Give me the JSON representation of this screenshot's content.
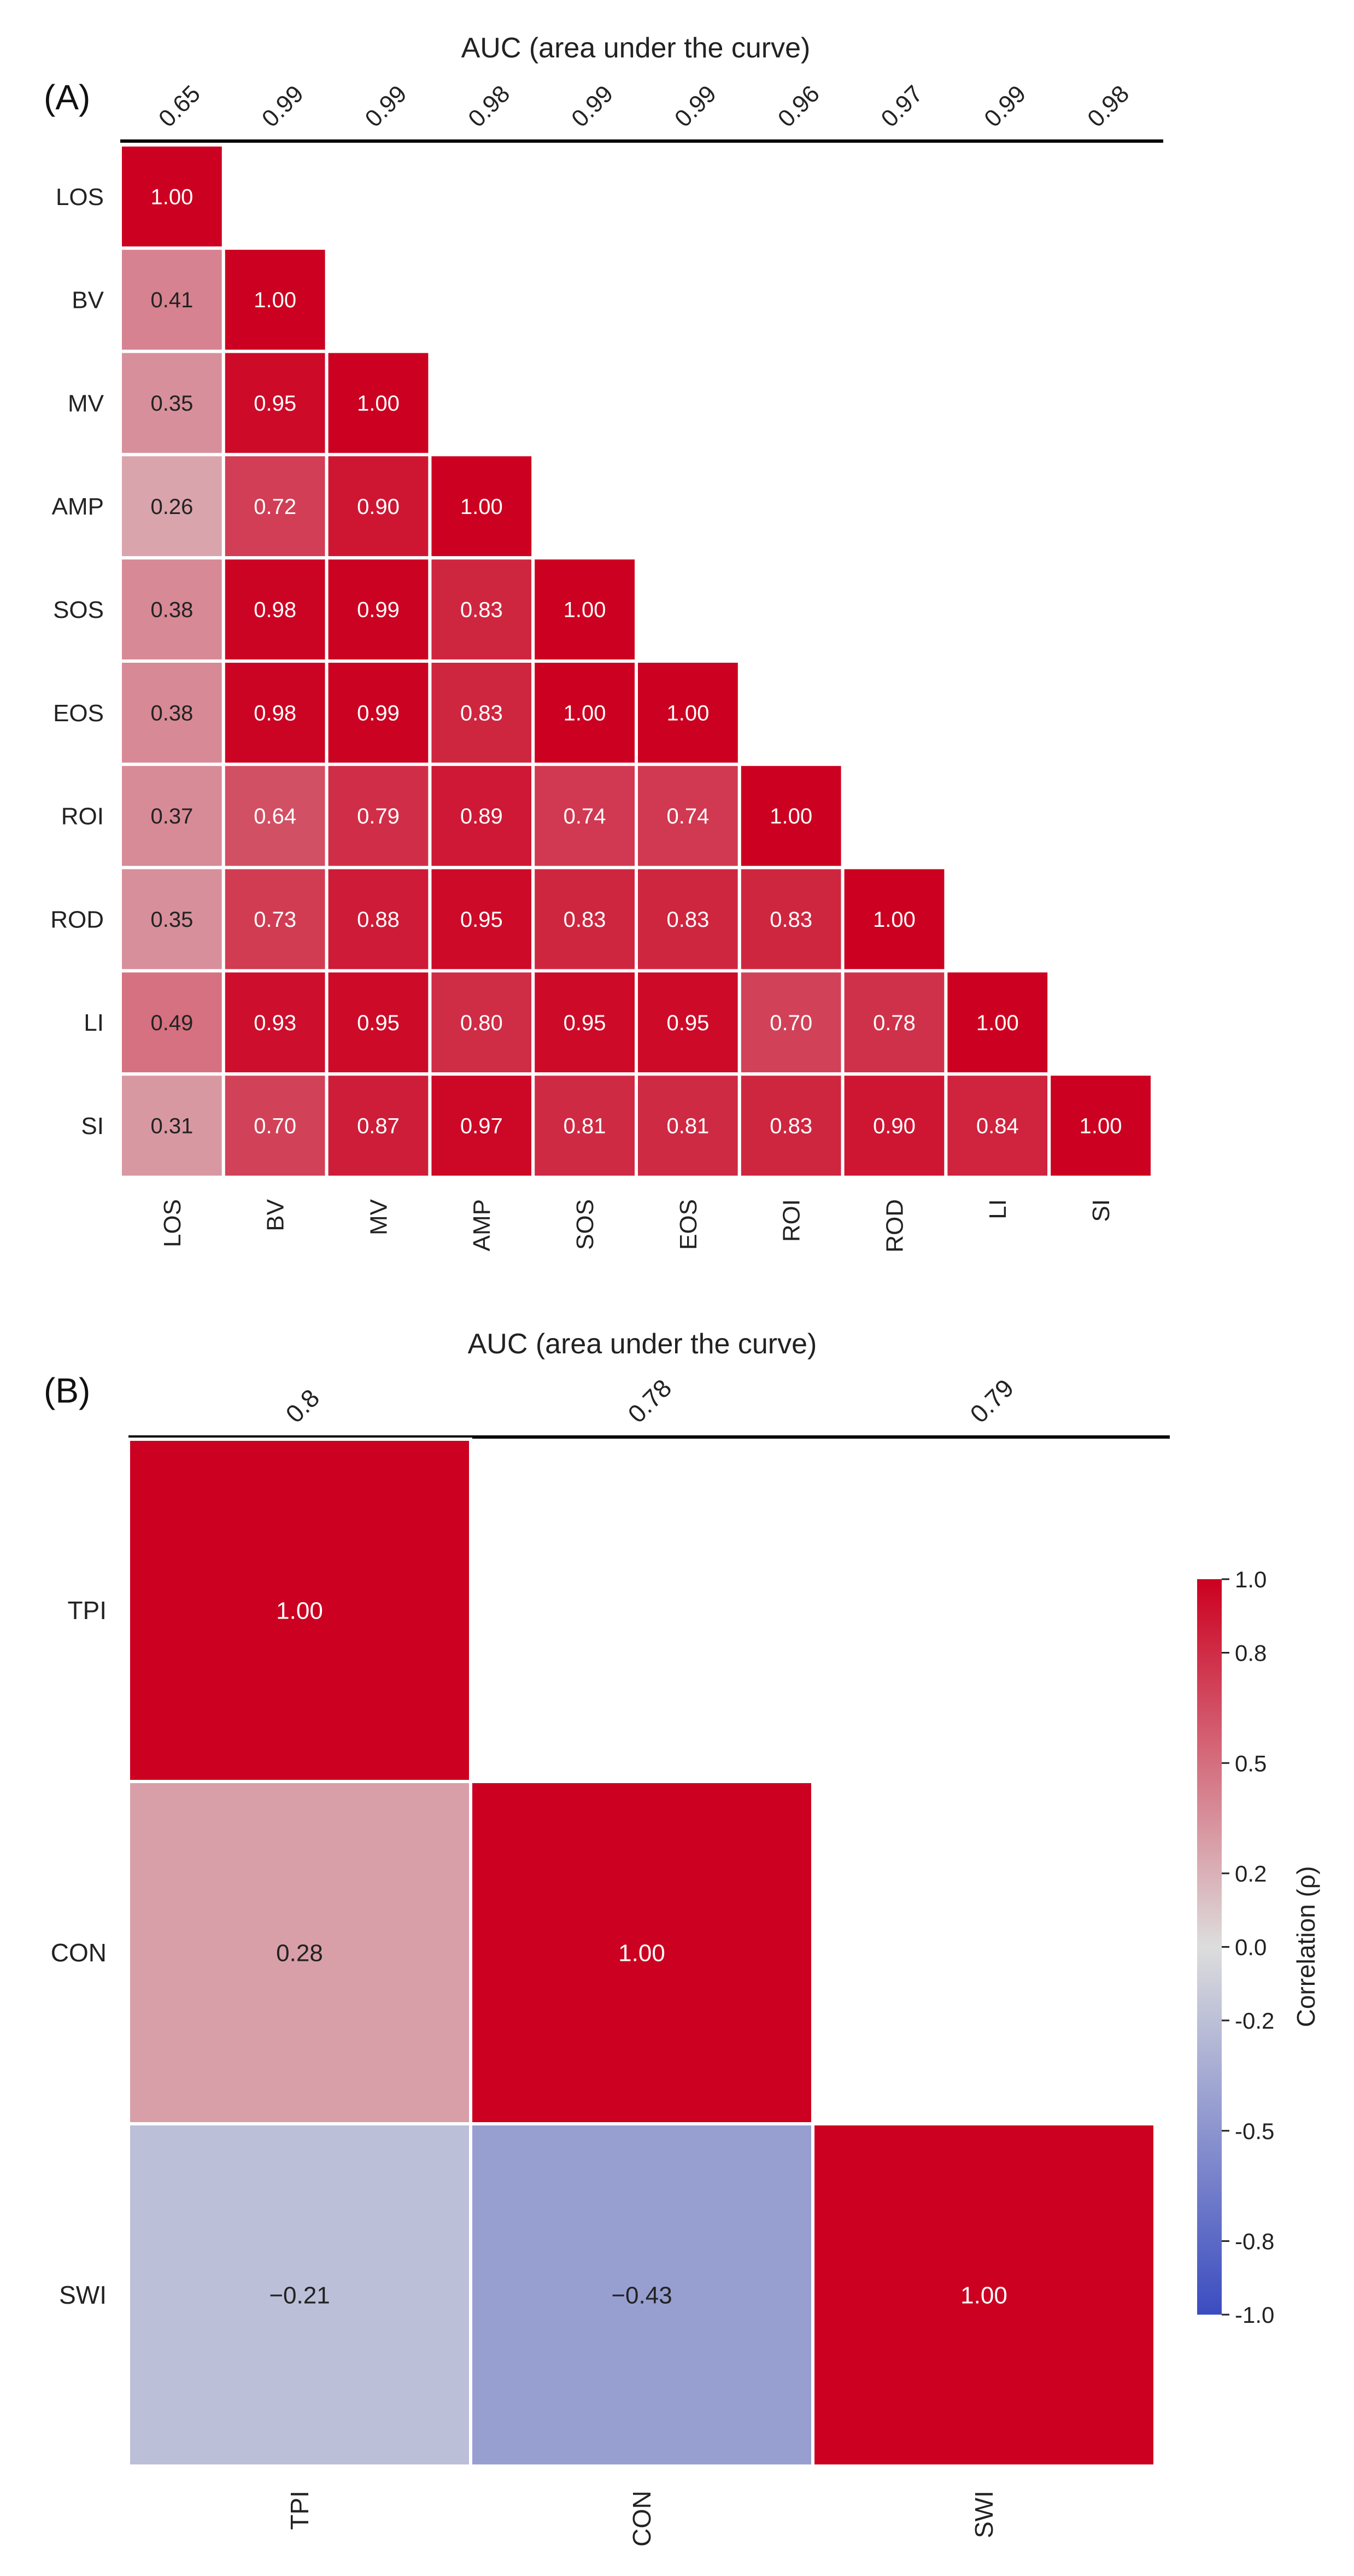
{
  "chart_data": [
    {
      "type": "heatmap",
      "panel_label": "(A)",
      "title": "AUC (area under the curve)",
      "variables": [
        "LOS",
        "BV",
        "MV",
        "AMP",
        "SOS",
        "EOS",
        "ROI",
        "ROD",
        "LI",
        "SI"
      ],
      "auc": [
        "0.65",
        "0.99",
        "0.99",
        "0.98",
        "0.99",
        "0.99",
        "0.96",
        "0.97",
        "0.99",
        "0.98"
      ],
      "values": [
        [
          1.0
        ],
        [
          0.41,
          1.0
        ],
        [
          0.35,
          0.95,
          1.0
        ],
        [
          0.26,
          0.72,
          0.9,
          1.0
        ],
        [
          0.38,
          0.98,
          0.99,
          0.83,
          1.0
        ],
        [
          0.38,
          0.98,
          0.99,
          0.83,
          1.0,
          1.0
        ],
        [
          0.37,
          0.64,
          0.79,
          0.89,
          0.74,
          0.74,
          1.0
        ],
        [
          0.35,
          0.73,
          0.88,
          0.95,
          0.83,
          0.83,
          0.83,
          1.0
        ],
        [
          0.49,
          0.93,
          0.95,
          0.8,
          0.95,
          0.95,
          0.7,
          0.78,
          1.0
        ],
        [
          0.31,
          0.7,
          0.87,
          0.97,
          0.81,
          0.81,
          0.83,
          0.9,
          0.84,
          1.0
        ]
      ],
      "labels": [
        [
          "1.00"
        ],
        [
          "0.41",
          "1.00"
        ],
        [
          "0.35",
          "0.95",
          "1.00"
        ],
        [
          "0.26",
          "0.72",
          "0.90",
          "1.00"
        ],
        [
          "0.38",
          "0.98",
          "0.99",
          "0.83",
          "1.00"
        ],
        [
          "0.38",
          "0.98",
          "0.99",
          "0.83",
          "1.00",
          "1.00"
        ],
        [
          "0.37",
          "0.64",
          "0.79",
          "0.89",
          "0.74",
          "0.74",
          "1.00"
        ],
        [
          "0.35",
          "0.73",
          "0.88",
          "0.95",
          "0.83",
          "0.83",
          "0.83",
          "1.00"
        ],
        [
          "0.49",
          "0.93",
          "0.95",
          "0.80",
          "0.95",
          "0.95",
          "0.70",
          "0.78",
          "1.00"
        ],
        [
          "0.31",
          "0.70",
          "0.87",
          "0.97",
          "0.81",
          "0.81",
          "0.83",
          "0.90",
          "0.84",
          "1.00"
        ]
      ]
    },
    {
      "type": "heatmap",
      "panel_label": "(B)",
      "title": "AUC (area under the curve)",
      "variables": [
        "TPI",
        "CON",
        "SWI"
      ],
      "auc": [
        "0.8",
        "0.78",
        "0.79"
      ],
      "values": [
        [
          1.0
        ],
        [
          0.28,
          1.0
        ],
        [
          -0.21,
          -0.43,
          1.0
        ]
      ],
      "labels": [
        [
          "1.00"
        ],
        [
          "0.28",
          "1.00"
        ],
        [
          "−0.21",
          "−0.43",
          "1.00"
        ]
      ]
    }
  ],
  "colorbar": {
    "label": "Correlation (ρ)",
    "range": [
      -1.0,
      1.0
    ],
    "ticks": [
      {
        "value": 1.0,
        "label": "1.0"
      },
      {
        "value": 0.8,
        "label": "0.8"
      },
      {
        "value": 0.5,
        "label": "0.5"
      },
      {
        "value": 0.2,
        "label": "0.2"
      },
      {
        "value": 0.0,
        "label": "0.0"
      },
      {
        "value": -0.2,
        "label": "-0.2"
      },
      {
        "value": -0.5,
        "label": "-0.5"
      },
      {
        "value": -0.8,
        "label": "-0.8"
      },
      {
        "value": -1.0,
        "label": "-1.0"
      }
    ],
    "colors": {
      "negative": "#3b4cc0",
      "neutral": "#dddddd",
      "positive": "#cc0020"
    }
  }
}
